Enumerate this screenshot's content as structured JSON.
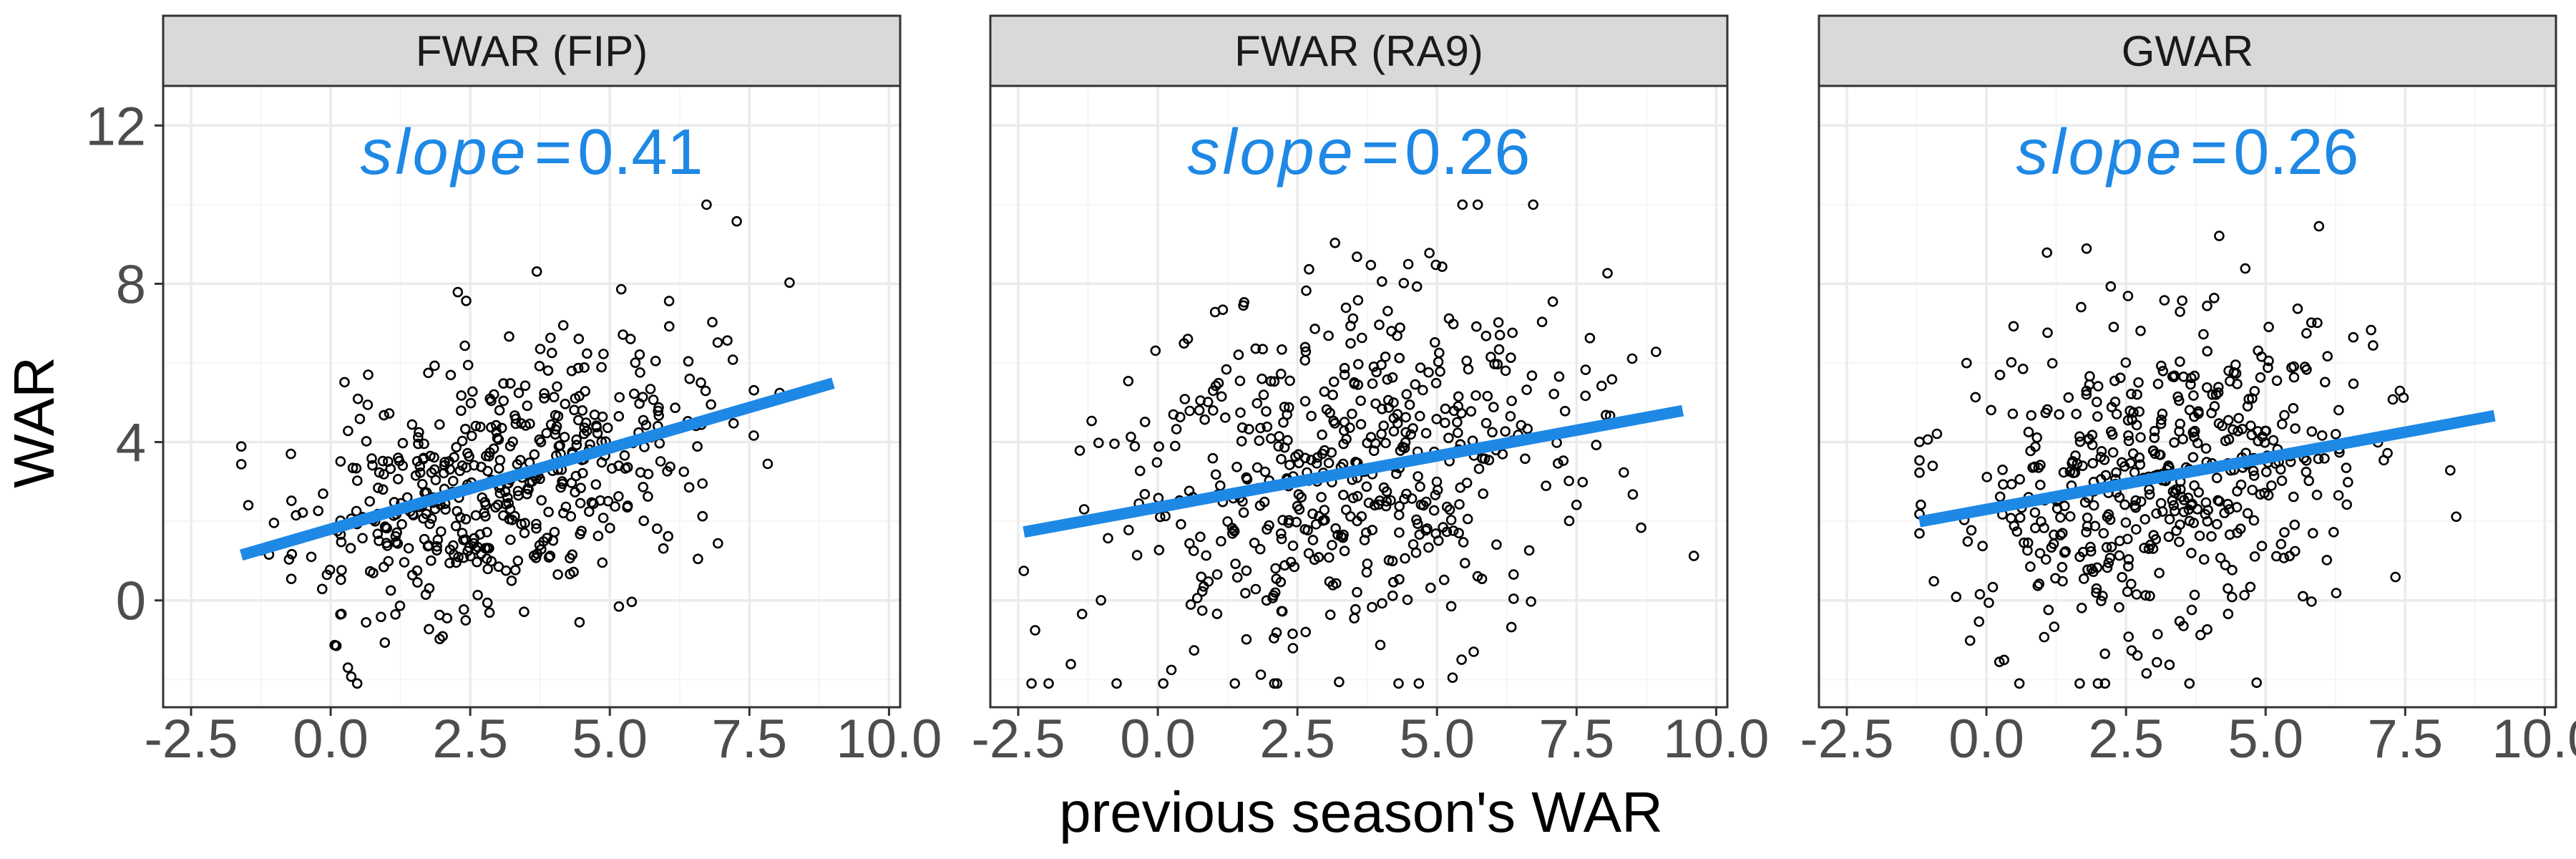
{
  "colors": {
    "panel_bg": "#ffffff",
    "strip_bg": "#d9d9d9",
    "border": "#333333",
    "grid_major": "#ebebeb",
    "grid_minor": "#f5f5f5",
    "point": "#000000",
    "fit_line": "#1e88e5",
    "tick_text": "#4d4d4d"
  },
  "chart_data": [
    {
      "type": "scatter",
      "panel": "FWAR (FIP)",
      "xlabel": "previous season's WAR",
      "ylabel": "WAR",
      "xlim": [
        -3,
        10.2
      ],
      "ylim": [
        -2.7,
        13.0
      ],
      "x_ticks": [
        -2.5,
        0.0,
        2.5,
        5.0,
        7.5,
        10.0
      ],
      "x_tick_labels": [
        "-2.5",
        "0.0",
        "2.5",
        "5.0",
        "7.5",
        "10.0"
      ],
      "y_ticks": [
        0,
        4,
        8,
        12
      ],
      "y_tick_labels": [
        "0",
        "4",
        "8",
        "12"
      ],
      "annotation": {
        "label": "slope",
        "operator": "=",
        "value": "0.41"
      },
      "fit": {
        "slope": 0.41,
        "intercept": 1.8,
        "x_range": [
          -1.6,
          9.0
        ]
      },
      "scatter_summary": {
        "n": 500,
        "x_mean": 3.0,
        "x_sd": 1.8,
        "y_sd": 1.6,
        "x_range": [
          -1.6,
          9.0
        ]
      },
      "seed": 11
    },
    {
      "type": "scatter",
      "panel": "FWAR (RA9)",
      "xlabel": "previous season's WAR",
      "ylabel": "WAR",
      "xlim": [
        -3,
        10.2
      ],
      "ylim": [
        -2.7,
        13.0
      ],
      "x_ticks": [
        -2.5,
        0.0,
        2.5,
        5.0,
        7.5,
        10.0
      ],
      "x_tick_labels": [
        "-2.5",
        "0.0",
        "2.5",
        "5.0",
        "7.5",
        "10.0"
      ],
      "y_ticks": [
        0,
        4,
        8,
        12
      ],
      "y_tick_labels": [
        "0",
        "4",
        "8",
        "12"
      ],
      "annotation": {
        "label": "slope",
        "operator": "=",
        "value": "0.26"
      },
      "fit": {
        "slope": 0.26,
        "intercept": 2.35,
        "x_range": [
          -2.4,
          9.4
        ]
      },
      "scatter_summary": {
        "n": 500,
        "x_mean": 3.2,
        "x_sd": 2.0,
        "y_sd": 2.3,
        "x_range": [
          -2.4,
          9.6
        ]
      },
      "seed": 23
    },
    {
      "type": "scatter",
      "panel": "GWAR",
      "xlabel": "previous season's WAR",
      "ylabel": "WAR",
      "xlim": [
        -3,
        10.2
      ],
      "ylim": [
        -2.7,
        13.0
      ],
      "x_ticks": [
        -2.5,
        0.0,
        2.5,
        5.0,
        7.5,
        10.0
      ],
      "x_tick_labels": [
        "-2.5",
        "0.0",
        "2.5",
        "5.0",
        "7.5",
        "10.0"
      ],
      "y_ticks": [
        0,
        4,
        8,
        12
      ],
      "y_tick_labels": [
        "0",
        "4",
        "8",
        "12"
      ],
      "annotation": {
        "label": "slope",
        "operator": "=",
        "value": "0.26"
      },
      "fit": {
        "slope": 0.26,
        "intercept": 2.3,
        "x_range": [
          -1.2,
          9.1
        ]
      },
      "scatter_summary": {
        "n": 500,
        "x_mean": 3.2,
        "x_sd": 1.8,
        "y_sd": 2.0,
        "x_range": [
          -1.2,
          9.4
        ]
      },
      "seed": 37
    }
  ],
  "labels": {
    "x_axis_title": "previous season's WAR",
    "y_axis_title": "WAR"
  }
}
